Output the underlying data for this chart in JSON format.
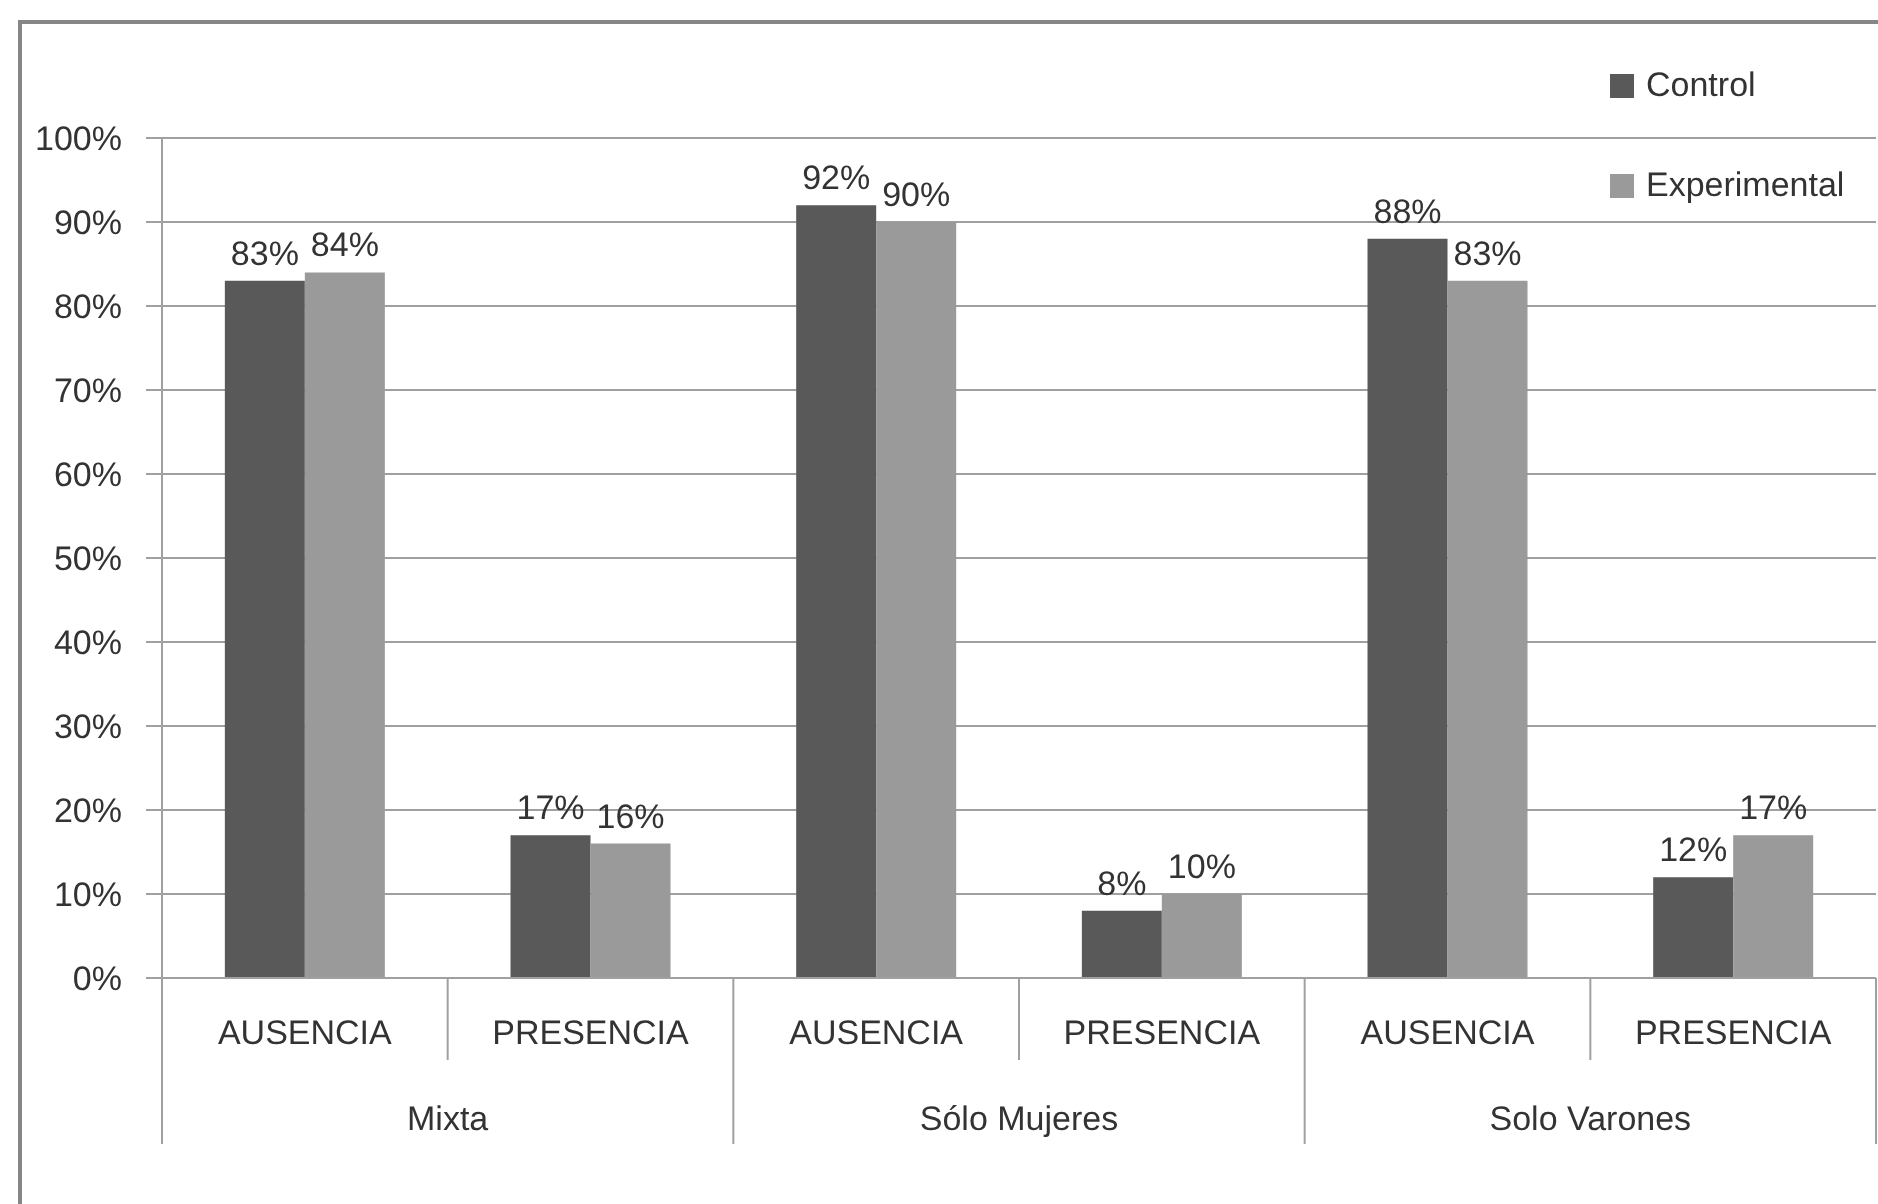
{
  "chart_data": {
    "type": "bar",
    "categories": [
      "AUSENCIA",
      "PRESENCIA",
      "AUSENCIA",
      "PRESENCIA",
      "AUSENCIA",
      "PRESENCIA"
    ],
    "series": [
      {
        "name": "Control",
        "color": "#595959",
        "values": [
          83,
          17,
          92,
          8,
          88,
          12
        ],
        "value_labels": [
          "83%",
          "17%",
          "92%",
          "8%",
          "88%",
          "12%"
        ]
      },
      {
        "name": "Experimental",
        "color": "#9a9a9a",
        "values": [
          84,
          16,
          90,
          10,
          83,
          17
        ],
        "value_labels": [
          "84%",
          "16%",
          "90%",
          "10%",
          "83%",
          "17%"
        ]
      }
    ],
    "ylim": [
      0,
      100
    ],
    "yticks": [
      {
        "value": 0,
        "label": "0%"
      },
      {
        "value": 10,
        "label": "10%"
      },
      {
        "value": 20,
        "label": "20%"
      },
      {
        "value": 30,
        "label": "30%"
      },
      {
        "value": 40,
        "label": "40%"
      },
      {
        "value": 50,
        "label": "50%"
      },
      {
        "value": 60,
        "label": "60%"
      },
      {
        "value": 70,
        "label": "70%"
      },
      {
        "value": 80,
        "label": "80%"
      },
      {
        "value": 90,
        "label": "90%"
      },
      {
        "value": 100,
        "label": "100%"
      }
    ],
    "grid": "y",
    "legend": "top right",
    "annotations": [
      "Mixta",
      "Sólo Mujeres",
      "Solo Varones"
    ]
  }
}
